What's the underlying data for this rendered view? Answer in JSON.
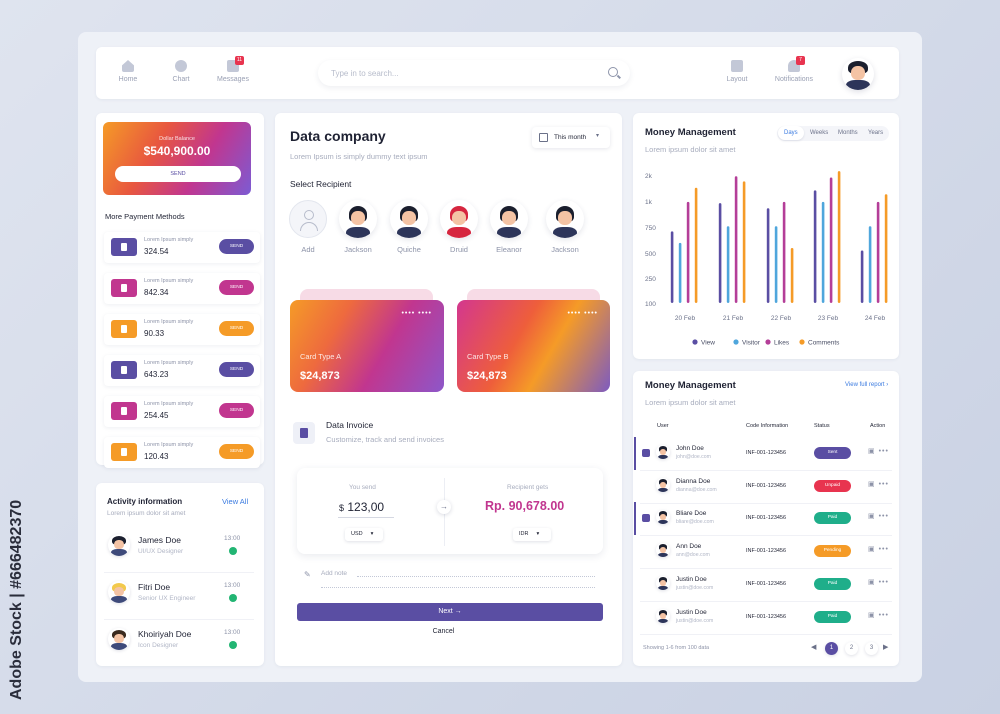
{
  "nav": {
    "items": [
      {
        "label": "Home",
        "icon": "home-icon"
      },
      {
        "label": "Chart",
        "icon": "pie-chart-icon"
      },
      {
        "label": "Messages",
        "icon": "mail-icon",
        "badge": "11"
      }
    ],
    "right": [
      {
        "label": "Layout",
        "icon": "grid-icon"
      },
      {
        "label": "Notifications",
        "icon": "bell-icon",
        "badge": "7"
      }
    ],
    "search_placeholder": "Type in to search..."
  },
  "balance": {
    "label": "Dollar Balance",
    "amount": "$540,900.00",
    "button": "SEND"
  },
  "payments": {
    "title": "More Payment Methods",
    "items": [
      {
        "label": "Lorem Ipsum simply",
        "amount": "324.54",
        "button": "SEND",
        "color": "#5a4ea3"
      },
      {
        "label": "Lorem Ipsum simply",
        "amount": "842.34",
        "button": "SEND",
        "color": "#c1368f"
      },
      {
        "label": "Lorem Ipsum simply",
        "amount": "90.33",
        "button": "SEND",
        "color": "#f59b27"
      },
      {
        "label": "Lorem Ipsum simply",
        "amount": "643.23",
        "button": "SEND",
        "color": "#5a4ea3"
      },
      {
        "label": "Lorem Ipsum simply",
        "amount": "254.45",
        "button": "SEND",
        "color": "#c1368f"
      },
      {
        "label": "Lorem Ipsum simply",
        "amount": "120.43",
        "button": "SEND",
        "color": "#f59b27"
      }
    ]
  },
  "activity": {
    "title": "Activity information",
    "view_all": "View All",
    "subtitle": "Lorem ipsum dolor sit amet",
    "items": [
      {
        "name": "James Doe",
        "role": "UI/UX Designer",
        "time": "13:00"
      },
      {
        "name": "Fitri Doe",
        "role": "Senior UX Engineer",
        "time": "13:00"
      },
      {
        "name": "Khoiriyah Doe",
        "role": "Icon Designer",
        "time": "13:00"
      }
    ]
  },
  "company": {
    "title": "Data company",
    "subtitle": "Lorem Ipsum is simply dummy text ipsum",
    "period": "This month",
    "recipient_title": "Select Recipient",
    "recipients": [
      "Add",
      "Jackson",
      "Quiche",
      "Druid",
      "Eleanor",
      "Jackson"
    ]
  },
  "cards": [
    {
      "type": "Card Type A",
      "amount": "$24,873",
      "dots": "•••• ••••"
    },
    {
      "type": "Card Type B",
      "amount": "$24,873",
      "dots": "•••• ••••"
    }
  ],
  "invoice": {
    "title": "Data Invoice",
    "subtitle": "Customize, track and send invoices",
    "you_send_label": "You send",
    "you_send": "123,00",
    "you_send_currency_symbol": "$",
    "you_send_currency": "USD",
    "recipient_label": "Recipient gets",
    "recipient_amount": "Rp. 90,678.00",
    "recipient_currency": "IDR",
    "note": "Add note",
    "next": "Next →",
    "cancel": "Cancel"
  },
  "money_chart": {
    "title": "Money Management",
    "subtitle": "Lorem ipsum dolor sit amet",
    "tabs": [
      "Days",
      "Weeks",
      "Months",
      "Years"
    ],
    "active_tab": "Days"
  },
  "chart_data": {
    "type": "bar",
    "categories": [
      "20 Feb",
      "21 Feb",
      "22 Feb",
      "23 Feb",
      "24 Feb"
    ],
    "yticks": [
      "2k",
      "1k",
      "750",
      "500",
      "250",
      "100"
    ],
    "series": [
      {
        "name": "View",
        "color": "#5a4ea3",
        "values": [
          0.56,
          0.78,
          0.74,
          0.88,
          0.41
        ]
      },
      {
        "name": "Visitor",
        "color": "#4fa6dc",
        "values": [
          0.47,
          0.6,
          0.6,
          0.79,
          0.6
        ]
      },
      {
        "name": "Likes",
        "color": "#b43e98",
        "values": [
          0.79,
          0.99,
          0.79,
          0.98,
          0.79
        ]
      },
      {
        "name": "Comments",
        "color": "#f59b27",
        "values": [
          0.9,
          0.95,
          0.43,
          1.03,
          0.85
        ]
      }
    ]
  },
  "table": {
    "title": "Money Management",
    "subtitle": "Lorem ipsum dolor sit amet",
    "link": "View full report ›",
    "headers": [
      "User",
      "Code Information",
      "Status",
      "Action"
    ],
    "rows": [
      {
        "name": "John Doe",
        "email": "john@doe.com",
        "code": "INF-001-123456",
        "status": "Sent",
        "color": "#5a4ea3",
        "checked": true
      },
      {
        "name": "Dianna Doe",
        "email": "dianna@doe.com",
        "code": "INF-001-123456",
        "status": "Unpaid",
        "color": "#e8344f",
        "checked": false
      },
      {
        "name": "Bliare Doe",
        "email": "bliare@doe.com",
        "code": "INF-001-123456",
        "status": "Paid",
        "color": "#1fae8a",
        "checked": true
      },
      {
        "name": "Ann Doe",
        "email": "ann@doe.com",
        "code": "INF-001-123456",
        "status": "Pending",
        "color": "#f59b27",
        "checked": false
      },
      {
        "name": "Justin Doe",
        "email": "justin@doe.com",
        "code": "INF-001-123456",
        "status": "Paid",
        "color": "#1fae8a",
        "checked": false
      },
      {
        "name": "Justin Doe",
        "email": "justin@doe.com",
        "code": "INF-001-123456",
        "status": "Paid",
        "color": "#1fae8a",
        "checked": false
      }
    ],
    "footer": "Showing 1-6 from 100 data",
    "pages": [
      "1",
      "2",
      "3"
    ]
  },
  "watermark": "Adobe Stock | #666482370"
}
